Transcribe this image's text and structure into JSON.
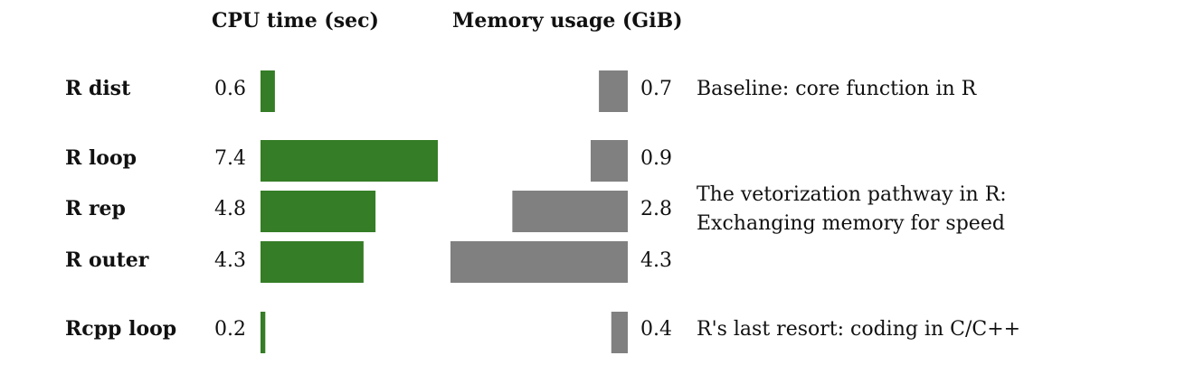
{
  "chart_data": {
    "type": "bar",
    "panels": [
      {
        "title": "CPU time (sec)",
        "color": "#357d26",
        "xlim": [
          0,
          7.4
        ]
      },
      {
        "title": "Memory usage (GiB)",
        "color": "#808080",
        "xlim": [
          0,
          4.3
        ]
      }
    ],
    "categories": [
      "R dist",
      "R loop",
      "R rep",
      "R outer",
      "Rcpp loop"
    ],
    "series": [
      {
        "name": "CPU time (sec)",
        "values": [
          0.6,
          7.4,
          4.8,
          4.3,
          0.2
        ],
        "labels": [
          "0.6",
          "7.4",
          "4.8",
          "4.3",
          "0.2"
        ]
      },
      {
        "name": "Memory usage (GiB)",
        "values": [
          0.7,
          0.9,
          2.8,
          4.3,
          0.4
        ],
        "labels": [
          "0.7",
          "0.9",
          "2.8",
          "4.3",
          "0.4"
        ]
      }
    ],
    "annotations": [
      {
        "lines": [
          "Baseline: core function in R"
        ]
      },
      {
        "lines": [
          "The vetorization pathway in R:",
          "Exchanging memory for speed"
        ]
      },
      {
        "lines": [
          "R's last resort: coding in C/C++"
        ]
      }
    ]
  }
}
